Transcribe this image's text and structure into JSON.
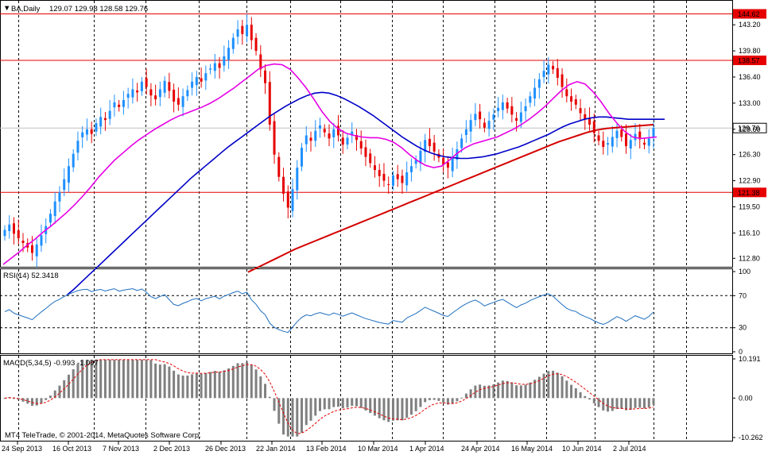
{
  "header": {
    "symbol_label": "BA,Daily",
    "ohlc": "129.07 129.98 128.58 129.76"
  },
  "price_axis": {
    "ticks": [
      "143.20",
      "139.80",
      "136.40",
      "133.00",
      "129.60",
      "126.30",
      "122.90",
      "119.50",
      "116.10",
      "112.80"
    ],
    "tick_values": [
      143.2,
      139.8,
      136.4,
      133.0,
      129.6,
      126.3,
      122.9,
      119.5,
      116.1,
      112.8
    ]
  },
  "levels": [
    {
      "label": "144.62",
      "value": 144.62,
      "color": "#e60000"
    },
    {
      "label": "138.57",
      "value": 138.57,
      "color": "#e60000"
    },
    {
      "label": "121.38",
      "value": 121.38,
      "color": "#e60000"
    }
  ],
  "current_price": {
    "label": "129.76",
    "value": 129.76
  },
  "rsi": {
    "title": "RSI(14) 52.3418",
    "ticks": [
      "100",
      "70",
      "30",
      "0"
    ],
    "tick_values": [
      100,
      70,
      30,
      0
    ],
    "color": "#1f6fbf"
  },
  "macd": {
    "title": "MACD(5,34,5) -0.993 -1.097",
    "ticks": [
      "10.191",
      "0.00",
      "-10.262"
    ],
    "tick_values": [
      10.191,
      0,
      -10.262
    ]
  },
  "dates": [
    "24 Sep 2013",
    "16 Oct 2013",
    "7 Nov 2013",
    "2 Dec 2013",
    "26 Dec 2013",
    "22 Jan 2014",
    "13 Feb 2014",
    "10 Mar 2014",
    "1 Apr 2014",
    "24 Apr 2014",
    "16 May 2014",
    "10 Jun 2014",
    "2 Jul 2014"
  ],
  "copyright": "MT4 TeleTrade, © 2001-2014, MetaQuotes Software Corp.",
  "colors": {
    "bull": "#1e90ff",
    "bear": "#e60000",
    "ma_fast": "#e600e6",
    "ma_mid": "#0000c8",
    "ma_slow": "#d40000",
    "level": "#e60000",
    "macd_hist": "#808080",
    "macd_signal": "#e60000"
  },
  "chart_data": {
    "type": "candlestick",
    "closes": [
      116.5,
      117.2,
      116.0,
      115.4,
      114.8,
      114.2,
      113.5,
      114.6,
      115.8,
      117.0,
      118.6,
      120.2,
      121.4,
      123.1,
      124.8,
      126.4,
      128.1,
      129.2,
      129.6,
      129.0,
      130.4,
      131.2,
      130.8,
      132.0,
      133.1,
      132.5,
      133.4,
      134.2,
      134.8,
      134.4,
      135.8,
      135.1,
      134.0,
      133.5,
      134.8,
      135.9,
      134.6,
      133.2,
      132.8,
      133.9,
      134.7,
      135.8,
      136.4,
      135.8,
      136.9,
      137.5,
      138.2,
      137.6,
      139.1,
      140.2,
      141.5,
      142.6,
      142.0,
      143.2,
      141.2,
      139.8,
      137.4,
      135.6,
      130.2,
      126.3,
      123.4,
      121.2,
      119.4,
      121.8,
      124.6,
      127.2,
      128.8,
      128.1,
      129.4,
      130.1,
      129.2,
      128.4,
      129.6,
      128.8,
      127.6,
      128.5,
      129.3,
      128.2,
      127.1,
      126.0,
      125.2,
      124.3,
      123.5,
      122.9,
      122.4,
      123.6,
      123.1,
      122.6,
      124.0,
      124.8,
      125.6,
      126.8,
      128.2,
      127.4,
      126.7,
      125.9,
      125.0,
      124.6,
      125.8,
      127.0,
      128.4,
      129.6,
      130.8,
      131.6,
      130.9,
      129.8,
      130.7,
      131.5,
      132.4,
      133.1,
      132.3,
      131.5,
      130.7,
      131.8,
      132.6,
      133.9,
      135.0,
      136.1,
      137.2,
      138.0,
      137.4,
      136.3,
      135.1,
      133.9,
      133.2,
      132.8,
      131.7,
      130.9,
      130.2,
      129.1,
      128.1,
      127.3,
      127.8,
      128.6,
      129.4,
      128.6,
      127.4,
      128.2,
      129.0,
      128.3,
      127.6,
      128.4,
      129.76
    ],
    "ma_fast": [
      112.0,
      112.8,
      113.6,
      114.5,
      115.3,
      116.2,
      117.0,
      117.9,
      118.8,
      119.8,
      120.9,
      122.1,
      123.4,
      124.5,
      125.6,
      126.5,
      127.4,
      128.2,
      128.9,
      129.6,
      130.2,
      130.8,
      131.3,
      131.7,
      132.1,
      132.5,
      133.0,
      133.6,
      134.3,
      135.0,
      135.8,
      136.6,
      137.4,
      137.9,
      138.1,
      138.0,
      137.4,
      136.3,
      135.0,
      133.5,
      131.9,
      130.6,
      129.7,
      129.1,
      128.8,
      128.6,
      128.5,
      128.5,
      128.3,
      127.9,
      127.2,
      126.3,
      125.5,
      124.9,
      124.6,
      124.8,
      125.6,
      126.5,
      127.2,
      127.7,
      128.0,
      128.3,
      128.6,
      129.1,
      129.6,
      130.2,
      130.9,
      131.7,
      132.6,
      133.6,
      134.6,
      135.4,
      135.8,
      135.5,
      134.5,
      133.2,
      131.7,
      130.4,
      129.3,
      128.6,
      128.4,
      128.5,
      128.6
    ],
    "ma_mid": [
      108.0,
      108.8,
      109.7,
      110.6,
      111.5,
      112.4,
      113.3,
      114.2,
      115.1,
      116.0,
      116.9,
      117.8,
      118.7,
      119.6,
      120.5,
      121.4,
      122.3,
      123.2,
      124.0,
      124.8,
      125.6,
      126.4,
      127.2,
      127.9,
      128.6,
      129.3,
      130.0,
      130.7,
      131.4,
      132.0,
      132.6,
      133.1,
      133.6,
      134.0,
      134.3,
      134.4,
      134.3,
      134.0,
      133.6,
      133.1,
      132.6,
      132.0,
      131.4,
      130.7,
      130.0,
      129.3,
      128.6,
      128.0,
      127.4,
      126.9,
      126.5,
      126.2,
      126.0,
      125.9,
      125.8,
      125.8,
      125.9,
      126.0,
      126.2,
      126.4,
      126.7,
      127.0,
      127.3,
      127.7,
      128.1,
      128.5,
      128.9,
      129.4,
      129.9,
      130.3,
      130.6,
      130.9,
      131.1,
      131.2,
      131.2,
      131.1,
      131.0,
      130.9,
      130.9,
      130.9,
      130.9,
      130.9,
      130.9
    ],
    "ma_slow": [
      111.0,
      111.6,
      112.2,
      112.8,
      113.4,
      114.0,
      114.5,
      115.0,
      115.5,
      116.0,
      116.5,
      117.0,
      117.5,
      118.0,
      118.5,
      119.0,
      119.5,
      120.0,
      120.5,
      121.0,
      121.5,
      122.0,
      122.5,
      123.0,
      123.5,
      124.0,
      124.5,
      125.0,
      125.5,
      126.0,
      126.5,
      127.0,
      127.5,
      128.0,
      128.4,
      128.8,
      129.2,
      129.5,
      129.7,
      129.8,
      129.9,
      130.0,
      130.1,
      130.2
    ]
  }
}
